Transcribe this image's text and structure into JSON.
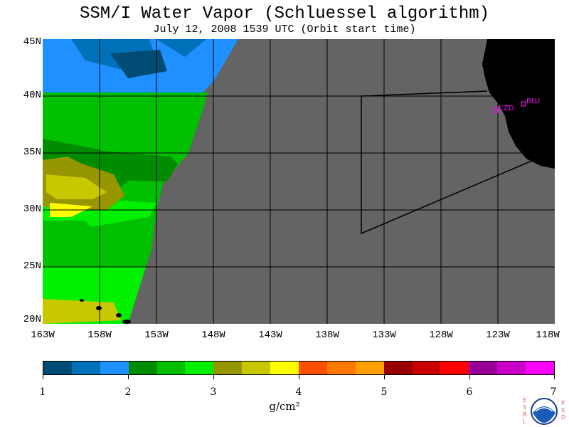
{
  "title": "SSM/I Water Vapor (Schluessel algorithm)",
  "subtitle": "July 12, 2008  1539 UTC  (Orbit start time)",
  "map": {
    "lat_labels": [
      "45N",
      "40N",
      "35N",
      "30N",
      "25N",
      "20N"
    ],
    "lon_labels": [
      "163W",
      "158W",
      "153W",
      "148W",
      "143W",
      "138W",
      "133W",
      "128W",
      "123W",
      "118W"
    ],
    "stations": [
      {
        "id": "czd",
        "label": "CZD"
      },
      {
        "id": "blu",
        "label": "BLU"
      }
    ],
    "colors": {
      "no_data": "#646464",
      "land": "#000000",
      "station": "#ff00ff",
      "grid": "#000000"
    }
  },
  "colorbar": {
    "colors": [
      "#004c74",
      "#0070b8",
      "#1e90ff",
      "#008c00",
      "#00c000",
      "#00f000",
      "#969600",
      "#c8c800",
      "#ffff00",
      "#ff5000",
      "#ff7800",
      "#ffa000",
      "#960000",
      "#c80000",
      "#ff0000",
      "#960096",
      "#c800c8",
      "#ff00ff"
    ],
    "tick_labels": [
      "1",
      "2",
      "3",
      "4",
      "5",
      "6",
      "7"
    ],
    "units": "g/cm²"
  },
  "logo": {
    "left_letters": [
      "E",
      "S",
      "R",
      "L"
    ],
    "right_letters": [
      "P",
      "S",
      "D"
    ],
    "text": "NOAA"
  }
}
